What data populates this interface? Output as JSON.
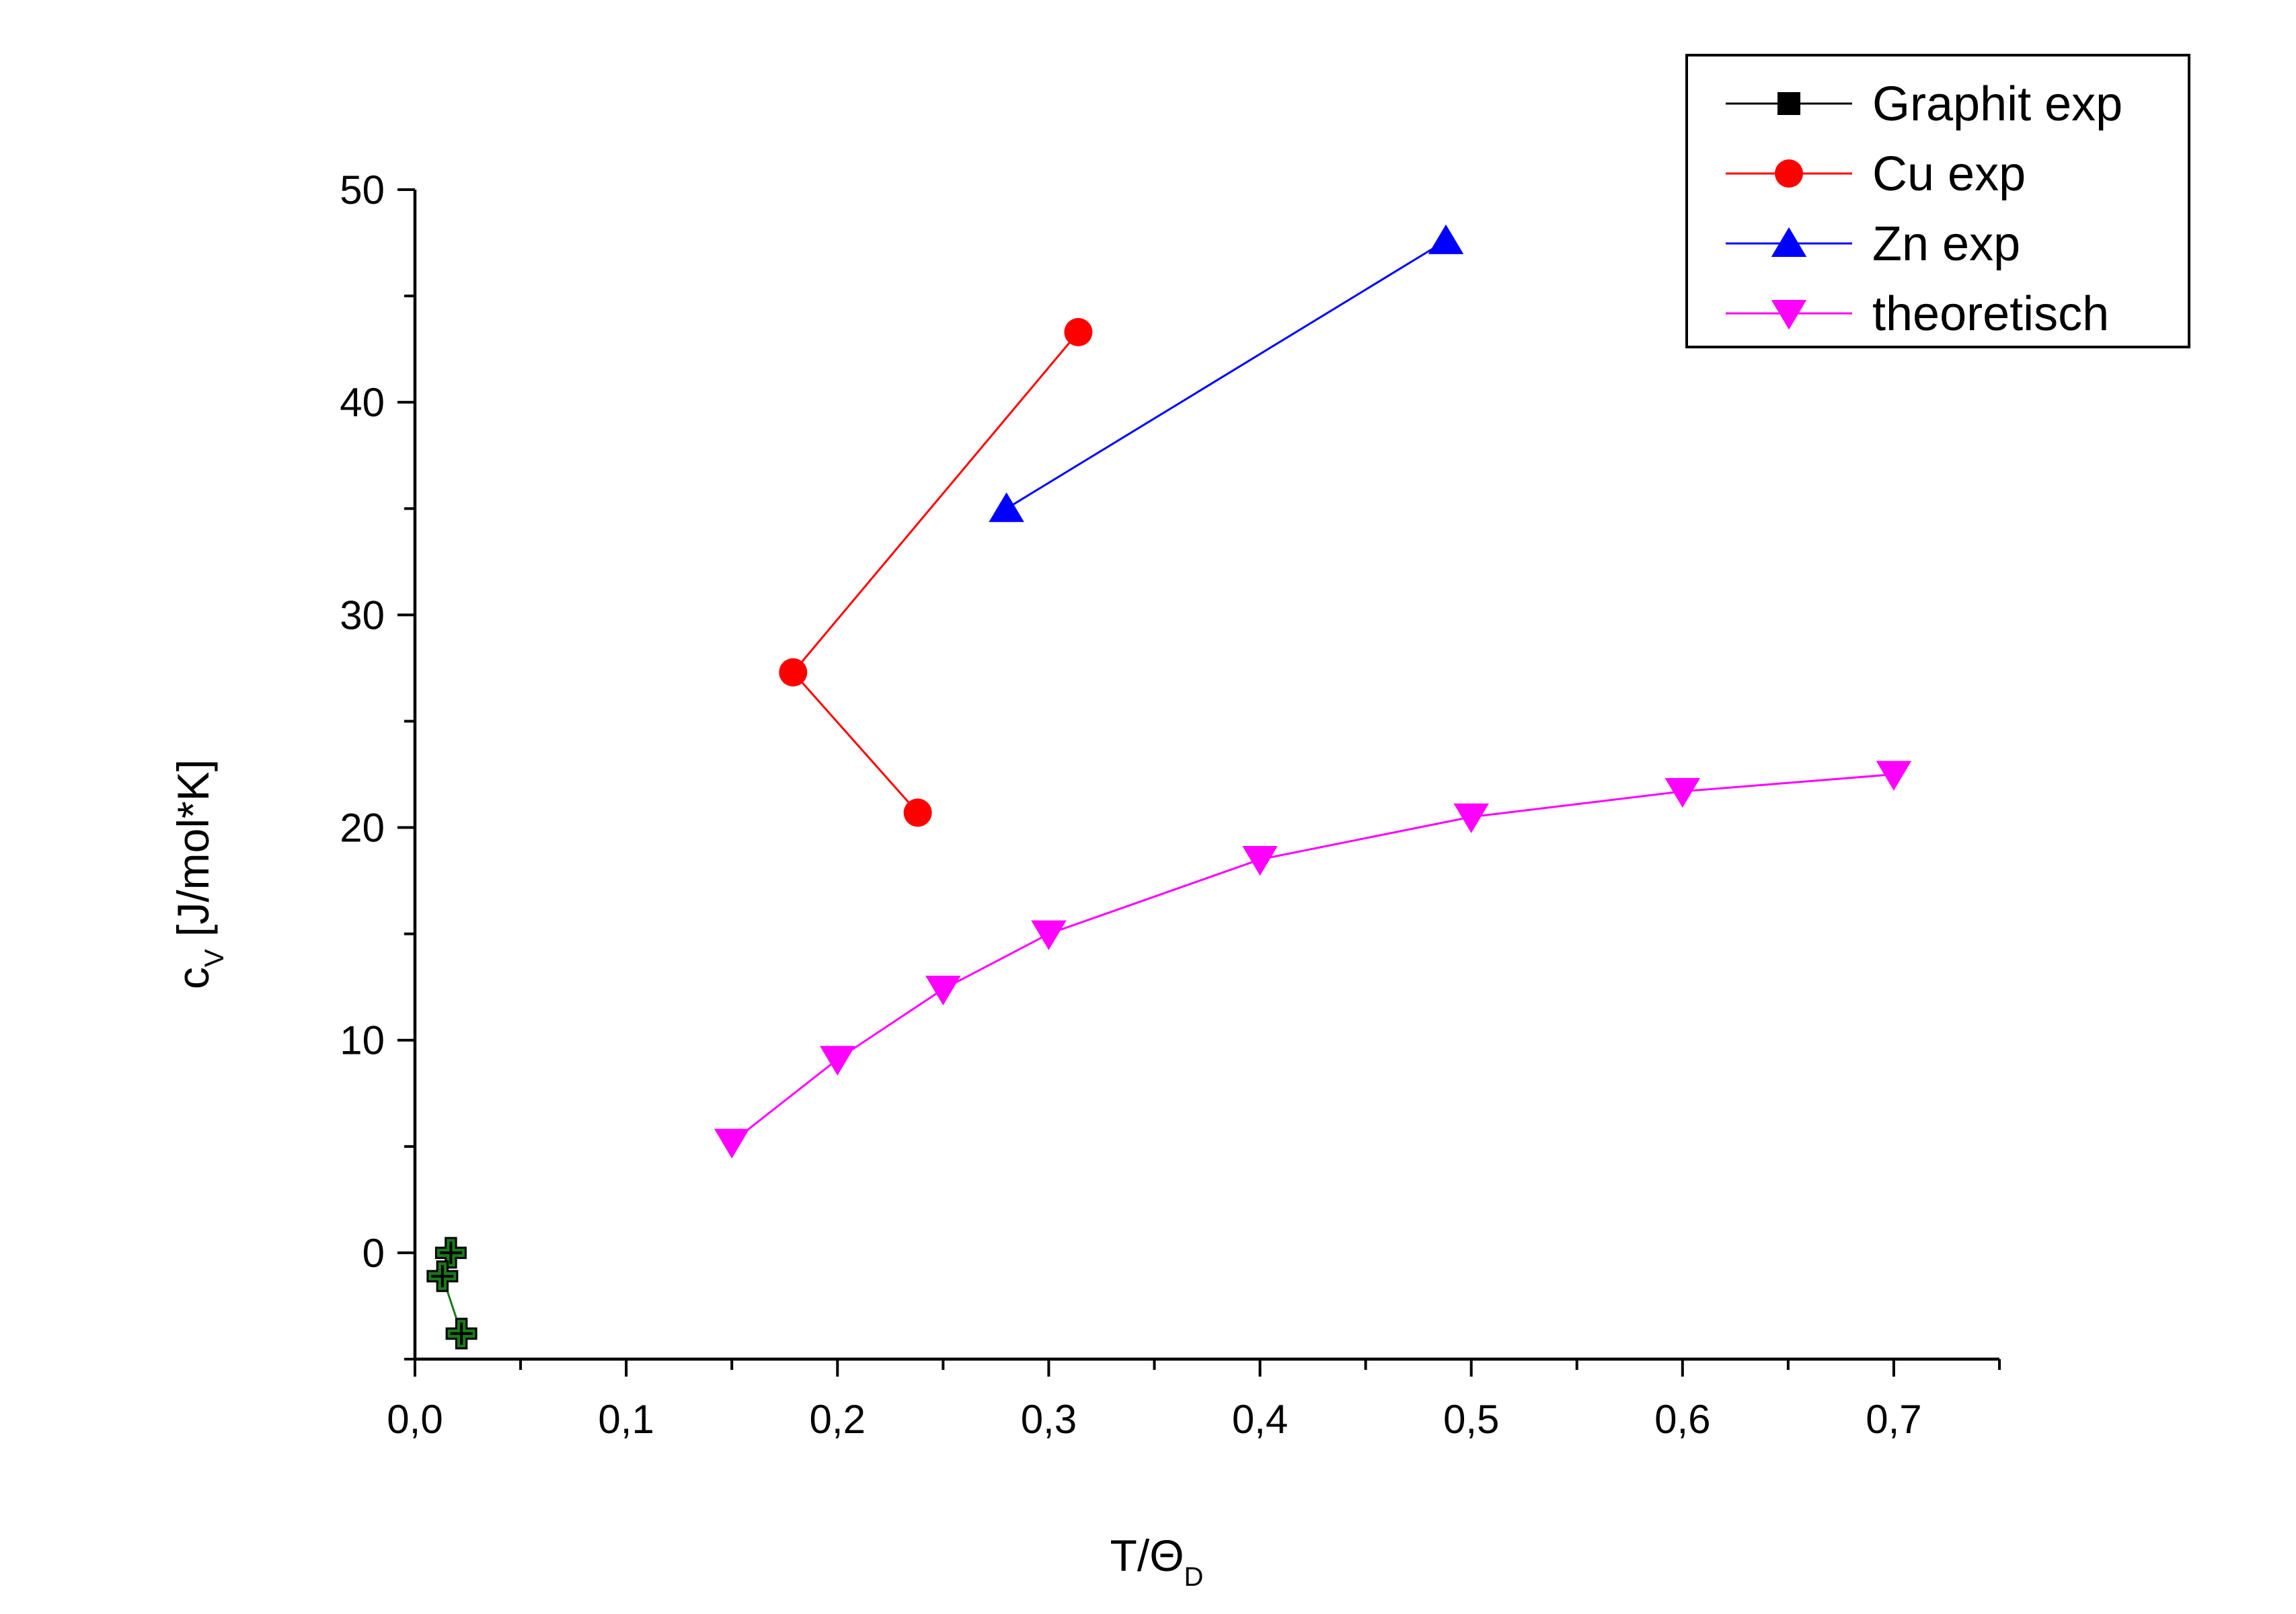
{
  "chart_data": {
    "type": "scatter",
    "xlabel": {
      "main": "T/Θ",
      "sub": "D"
    },
    "ylabel": {
      "main": "c",
      "sub": "V",
      "rest": " [J/mol*K]"
    },
    "xlim": [
      0.0,
      0.75
    ],
    "ylim": [
      -5,
      50
    ],
    "x_ticks": [
      0.0,
      0.1,
      0.2,
      0.3,
      0.4,
      0.5,
      0.6,
      0.7
    ],
    "x_tick_labels": [
      "0,0",
      "0,1",
      "0,2",
      "0,3",
      "0,4",
      "0,5",
      "0,6",
      "0,7"
    ],
    "y_ticks": [
      0,
      10,
      20,
      30,
      40,
      50
    ],
    "y_tick_labels": [
      "0",
      "10",
      "20",
      "30",
      "40",
      "50"
    ],
    "grid": false,
    "legend_position": "top-right",
    "series": [
      {
        "name": "Graphit exp",
        "color": "#000000",
        "marker": "square",
        "marker_fill": "#000000",
        "drawn_color": "#1a7a1a",
        "drawn_marker": "plus-circle",
        "x": [
          0.017,
          0.013,
          0.022
        ],
        "y": [
          0.0,
          -1.1,
          -3.8
        ]
      },
      {
        "name": "Cu exp",
        "color": "#ff0000",
        "marker": "circle",
        "x": [
          0.238,
          0.179,
          0.314
        ],
        "y": [
          20.7,
          27.3,
          43.3
        ]
      },
      {
        "name": "Zn exp",
        "color": "#0000ff",
        "marker": "triangle-up",
        "x": [
          0.28,
          0.488
        ],
        "y": [
          35.0,
          47.6
        ]
      },
      {
        "name": "theoretisch",
        "color": "#ff00ff",
        "marker": "triangle-down",
        "x": [
          0.15,
          0.2,
          0.25,
          0.3,
          0.4,
          0.5,
          0.6,
          0.7
        ],
        "y": [
          5.2,
          9.1,
          12.4,
          15.0,
          18.5,
          20.5,
          21.7,
          22.5
        ]
      }
    ]
  }
}
